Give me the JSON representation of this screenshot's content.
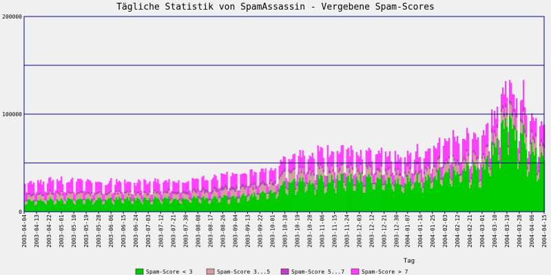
{
  "chart_data": {
    "type": "area",
    "title": "Tägliche Statistik von SpamAssassin - Vergebene Spam-Scores",
    "xlabel": "Tag",
    "ylabel": "",
    "ylim": [
      0,
      200000
    ],
    "y_ticks": [
      0,
      100000,
      200000
    ],
    "gridlines": [
      50000,
      100000,
      150000,
      200000
    ],
    "grid": true,
    "legend_position": "bottom",
    "x_start": "2003-04-04",
    "x_end": "2004-04-15",
    "x_tick_labels": [
      "2003-04-04",
      "2003-04-13",
      "2003-04-22",
      "2003-05-01",
      "2003-05-10",
      "2003-05-19",
      "2003-05-28",
      "2003-06-06",
      "2003-06-15",
      "2003-06-24",
      "2003-07-03",
      "2003-07-12",
      "2003-07-21",
      "2003-07-30",
      "2003-08-08",
      "2003-08-17",
      "2003-08-26",
      "2003-09-04",
      "2003-09-13",
      "2003-09-22",
      "2003-10-01",
      "2003-10-10",
      "2003-10-19",
      "2003-10-28",
      "2003-11-06",
      "2003-11-15",
      "2003-11-24",
      "2003-12-03",
      "2003-12-12",
      "2003-12-21",
      "2003-12-30",
      "2004-01-07",
      "2004-01-16",
      "2004-01-25",
      "2004-02-03",
      "2004-02-12",
      "2004-02-21",
      "2004-03-01",
      "2004-03-10",
      "2004-03-19",
      "2004-03-28",
      "2004-04-06",
      "2004-04-15"
    ],
    "series": [
      {
        "name": "Spam-Score < 3",
        "color": "#00cc00"
      },
      {
        "name": "Spam-Score 3...5",
        "color": "#d0a0a0"
      },
      {
        "name": "Spam-Score 5...7",
        "color": "#c040c0"
      },
      {
        "name": "Spam-Score > 7",
        "color": "#ff40ff"
      }
    ],
    "series_trend": {
      "dates": [
        "2003-04-04",
        "2003-05-01",
        "2003-06-01",
        "2003-07-01",
        "2003-08-01",
        "2003-09-01",
        "2003-10-01",
        "2003-10-10",
        "2003-11-01",
        "2003-12-01",
        "2003-12-30",
        "2004-01-25",
        "2004-02-03",
        "2004-03-01",
        "2004-03-19",
        "2004-04-15"
      ],
      "s1": [
        12000,
        13000,
        13000,
        14000,
        14000,
        15000,
        20000,
        30000,
        33000,
        35000,
        32000,
        36000,
        42000,
        45000,
        90000,
        50000
      ],
      "s2": [
        5000,
        6000,
        5000,
        5000,
        5000,
        7000,
        8000,
        9000,
        9000,
        9000,
        8000,
        9000,
        10000,
        10000,
        12000,
        11000
      ],
      "s3": [
        2000,
        2000,
        2000,
        2000,
        3000,
        4000,
        3000,
        3000,
        3000,
        3000,
        3000,
        3000,
        3000,
        3000,
        4000,
        4000
      ],
      "s4": [
        11000,
        12000,
        10000,
        10000,
        10000,
        12000,
        12000,
        12000,
        15000,
        15000,
        14000,
        17000,
        20000,
        20000,
        18000,
        18000
      ]
    },
    "extremes": [
      {
        "date": "2004-03-21",
        "total": 135000
      },
      {
        "date": "2004-03-31",
        "total": 135000
      }
    ]
  }
}
